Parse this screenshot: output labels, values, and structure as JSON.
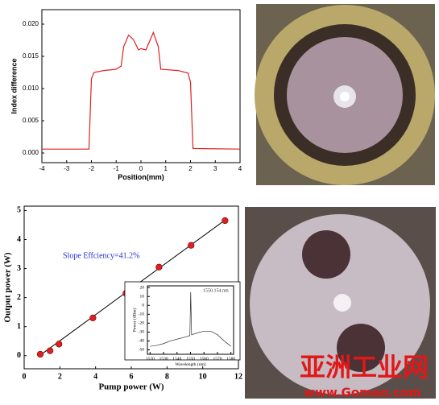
{
  "chart_data": [
    {
      "type": "line",
      "ylabel": "Index difference",
      "xlabel": "Position(mm)",
      "color": "#e02020",
      "x": [
        -4,
        -2.1,
        -2.0,
        -1.9,
        -1.5,
        -1.0,
        -0.8,
        -0.7,
        -0.5,
        -0.3,
        -0.1,
        0,
        0.2,
        0.4,
        0.5,
        0.7,
        0.8,
        1.5,
        1.9,
        2.0,
        2.1,
        4
      ],
      "values": [
        0.0006,
        0.0006,
        0.0115,
        0.0125,
        0.0128,
        0.013,
        0.0135,
        0.0165,
        0.0183,
        0.0176,
        0.016,
        0.0162,
        0.016,
        0.0178,
        0.0187,
        0.0165,
        0.013,
        0.0128,
        0.0124,
        0.011,
        0.0007,
        0.0006
      ],
      "xlim": [
        -4,
        4
      ],
      "xticks": [
        -4,
        -3,
        -2,
        -1,
        0,
        1,
        2,
        3,
        4
      ],
      "ylim": [
        -0.0015,
        0.02225
      ],
      "yticks": [
        {
          "value": 0,
          "label": "0.000"
        },
        {
          "value": 0.005,
          "label": "0.005"
        },
        {
          "value": 0.01,
          "label": "0.010"
        },
        {
          "value": 0.015,
          "label": "0.015"
        },
        {
          "value": 0.02,
          "label": "0.020"
        }
      ]
    },
    {
      "type": "scatter",
      "ylabel": "Output power (W)",
      "xlabel": "Pump power (W)",
      "color": "#e02020",
      "x": [
        0.9,
        1.45,
        1.95,
        3.85,
        5.7,
        7.55,
        9.35,
        11.25
      ],
      "values": [
        0.05,
        0.17,
        0.4,
        1.3,
        2.15,
        3.05,
        3.8,
        4.65
      ],
      "fit": {
        "x": [
          0.9,
          11.25
        ],
        "y": [
          0.02,
          4.67
        ]
      },
      "annotation": "Slope Effciency=41.2%",
      "xlim": [
        0,
        12
      ],
      "xticks": [
        0,
        2,
        4,
        6,
        8,
        10,
        12
      ],
      "ylim": [
        -0.45,
        5.15
      ],
      "yticks": [
        0,
        1,
        2,
        3,
        4,
        5
      ]
    },
    {
      "type": "line",
      "ylabel": "Power (dBm)",
      "xlabel": "Wavelength (nm)",
      "color": "#333333",
      "x": [
        1520,
        1525,
        1530,
        1535,
        1540,
        1545,
        1549.5,
        1550.154,
        1550.8,
        1555,
        1560,
        1565,
        1570,
        1575,
        1580
      ],
      "values": [
        -46,
        -45,
        -43,
        -40,
        -38,
        -36,
        -34,
        15,
        -33,
        -31,
        -29,
        -29,
        -33,
        -40,
        -46
      ],
      "annotation": "1550.154 nm",
      "xlim": [
        1518,
        1582
      ],
      "xticks": [
        1520,
        1530,
        1540,
        1550,
        1560,
        1570,
        1580
      ],
      "ylim": [
        -55,
        22
      ],
      "yticks": [
        20,
        10,
        0,
        -10,
        -20,
        -30,
        -40,
        -50
      ]
    }
  ],
  "watermark": {
    "title": "亚洲工业网",
    "url": "www.Gomao.com"
  }
}
